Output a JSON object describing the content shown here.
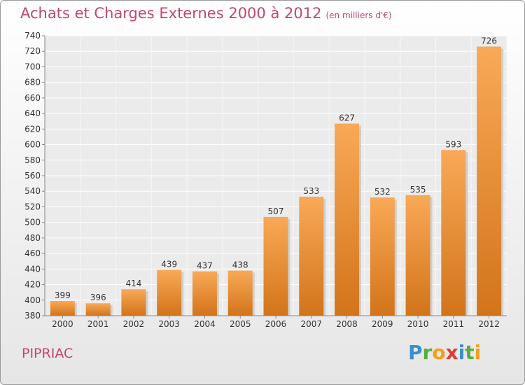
{
  "header": {
    "title": "Achats et Charges Externes 2000 à 2012",
    "unit": "(en milliers d'€)"
  },
  "footer": {
    "town": "PIPRIAC",
    "logo_letters": [
      "P",
      "r",
      "o",
      "x",
      "i",
      "t",
      "i"
    ]
  },
  "colors": {
    "title": "#c0476a",
    "bar_light": "#f7a450",
    "bar_dark": "#d4781e"
  },
  "chart_data": {
    "type": "bar",
    "title": "Achats et Charges Externes 2000 à 2012",
    "subtitle": "(en milliers d'€)",
    "xlabel": "",
    "ylabel": "",
    "categories": [
      "2000",
      "2001",
      "2002",
      "2003",
      "2004",
      "2005",
      "2006",
      "2007",
      "2008",
      "2009",
      "2010",
      "2011",
      "2012"
    ],
    "values": [
      399,
      396,
      414,
      439,
      437,
      438,
      507,
      533,
      627,
      532,
      535,
      593,
      726
    ],
    "ylim": [
      380,
      740
    ],
    "yticks": [
      380,
      400,
      420,
      440,
      460,
      480,
      500,
      520,
      540,
      560,
      580,
      600,
      620,
      640,
      660,
      680,
      700,
      720,
      740
    ],
    "grid": true,
    "data_labels": true
  }
}
